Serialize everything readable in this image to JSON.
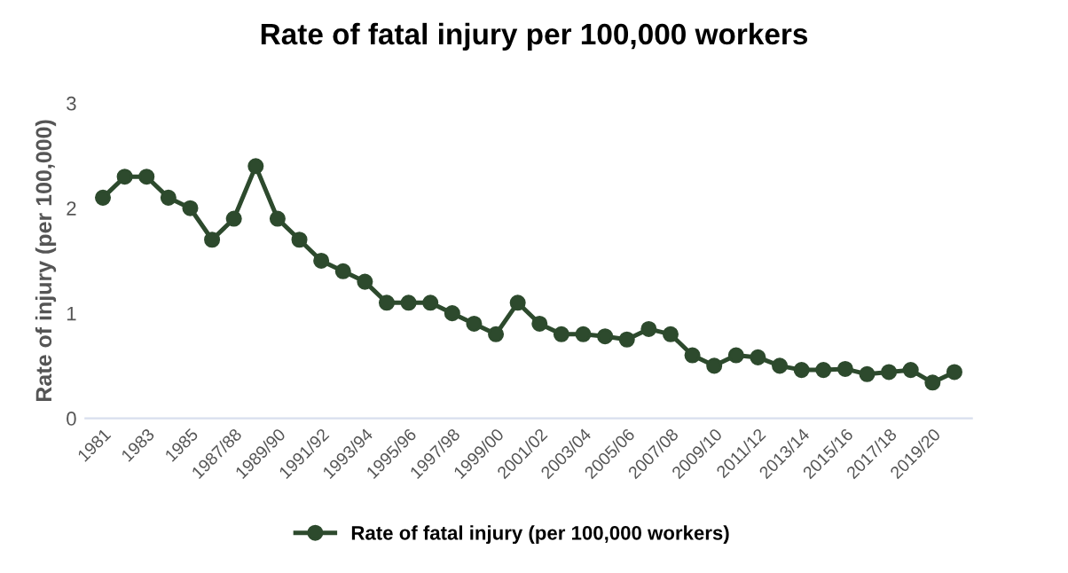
{
  "chart_data": {
    "type": "line",
    "title": "Rate of fatal injury per 100,000 workers",
    "ylabel": "Rate of injury (per 100,000)",
    "categories": [
      "1981",
      null,
      "1983",
      null,
      "1985",
      null,
      "1987/88",
      null,
      "1989/90",
      null,
      "1991/92",
      null,
      "1993/94",
      null,
      "1995/96",
      null,
      "1997/98",
      null,
      "1999/00",
      null,
      "2001/02",
      null,
      "2003/04",
      null,
      "2005/06",
      null,
      "2007/08",
      null,
      "2009/10",
      null,
      "2011/12",
      null,
      "2013/14",
      null,
      "2015/16",
      null,
      "2017/18",
      null,
      "2019/20",
      null
    ],
    "series": [
      {
        "name": "Rate of fatal injury (per 100,000 workers)",
        "color": "#2d4a2d",
        "values": [
          2.1,
          2.3,
          2.3,
          2.1,
          2.0,
          1.7,
          1.9,
          2.4,
          1.9,
          1.7,
          1.5,
          1.4,
          1.3,
          1.1,
          1.1,
          1.1,
          1.0,
          0.9,
          0.8,
          1.1,
          0.9,
          0.8,
          0.8,
          0.78,
          0.75,
          0.85,
          0.8,
          0.6,
          0.5,
          0.6,
          0.58,
          0.5,
          0.46,
          0.46,
          0.47,
          0.42,
          0.44,
          0.46,
          0.34,
          0.44
        ]
      }
    ],
    "ylim": [
      0,
      3
    ],
    "yticks": [
      0,
      1,
      2,
      3
    ],
    "grid": false,
    "legend": "bottom",
    "marker": "circle",
    "line_style": "solid"
  }
}
